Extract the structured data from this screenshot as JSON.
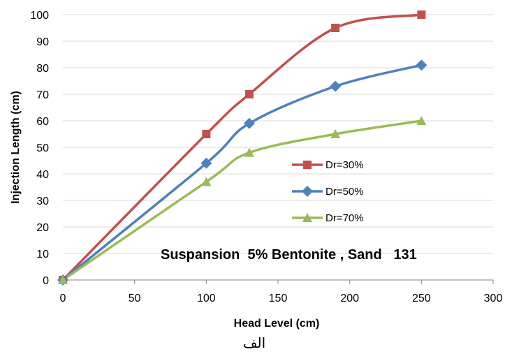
{
  "chart_data": {
    "type": "line",
    "title": "",
    "xlabel": "Head Level (cm)",
    "ylabel": "Injection Length (cm)",
    "xlim": [
      0,
      300
    ],
    "ylim": [
      0,
      100
    ],
    "x_ticks": [
      "0",
      "50",
      "100",
      "150",
      "200",
      "250",
      "300"
    ],
    "y_ticks": [
      "0",
      "10",
      "20",
      "30",
      "40",
      "50",
      "60",
      "70",
      "80",
      "90",
      "100"
    ],
    "grid": "horizontal",
    "legend_position": "center-right",
    "series": [
      {
        "name": "Dr=30%",
        "color": "#C0504D",
        "marker": "square",
        "x": [
          0,
          100,
          130,
          190,
          250
        ],
        "y": [
          0,
          55,
          70,
          95,
          100
        ]
      },
      {
        "name": "Dr=50%",
        "color": "#4F81BD",
        "marker": "diamond",
        "x": [
          0,
          100,
          130,
          190,
          250
        ],
        "y": [
          0,
          44,
          59,
          73,
          81
        ]
      },
      {
        "name": "Dr=70%",
        "color": "#9BBB59",
        "marker": "triangle",
        "x": [
          0,
          100,
          130,
          190,
          250
        ],
        "y": [
          0,
          37,
          48,
          55,
          60
        ]
      }
    ],
    "annotation": "Suspansion  5% Bentonite , Sand   131"
  },
  "caption": "الف"
}
